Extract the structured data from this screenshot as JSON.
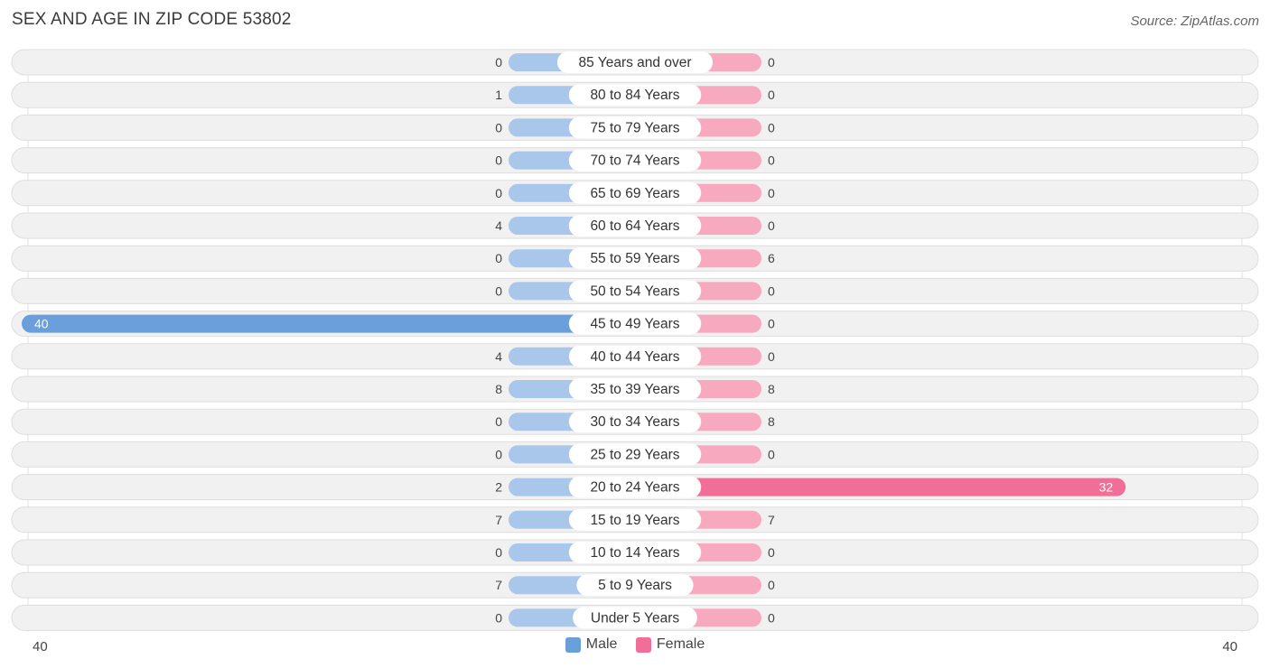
{
  "header": {
    "title": "SEX AND AGE IN ZIP CODE 53802",
    "source": "Source: ZipAtlas.com"
  },
  "colors": {
    "male": "#a9c7ea",
    "male_strong": "#6a9fdb",
    "female": "#f7a9c0",
    "female_strong": "#f06e97",
    "row_bg": "#f1f1f1"
  },
  "axis": {
    "left_label": "40",
    "right_label": "40"
  },
  "legend": {
    "male": "Male",
    "female": "Female"
  },
  "chart_data": {
    "type": "bar",
    "title": "SEX AND AGE IN ZIP CODE 53802",
    "orientation": "horizontal-diverging",
    "categories": [
      "85 Years and over",
      "80 to 84 Years",
      "75 to 79 Years",
      "70 to 74 Years",
      "65 to 69 Years",
      "60 to 64 Years",
      "55 to 59 Years",
      "50 to 54 Years",
      "45 to 49 Years",
      "40 to 44 Years",
      "35 to 39 Years",
      "30 to 34 Years",
      "25 to 29 Years",
      "20 to 24 Years",
      "15 to 19 Years",
      "10 to 14 Years",
      "5 to 9 Years",
      "Under 5 Years"
    ],
    "series": [
      {
        "name": "Male",
        "values": [
          0,
          1,
          0,
          0,
          0,
          4,
          0,
          0,
          40,
          4,
          8,
          0,
          0,
          2,
          7,
          0,
          7,
          0
        ]
      },
      {
        "name": "Female",
        "values": [
          0,
          0,
          0,
          0,
          0,
          0,
          6,
          0,
          0,
          0,
          8,
          8,
          0,
          32,
          7,
          0,
          0,
          0
        ]
      }
    ],
    "xlim": [
      -40,
      40
    ],
    "legend_position": "bottom-center"
  }
}
